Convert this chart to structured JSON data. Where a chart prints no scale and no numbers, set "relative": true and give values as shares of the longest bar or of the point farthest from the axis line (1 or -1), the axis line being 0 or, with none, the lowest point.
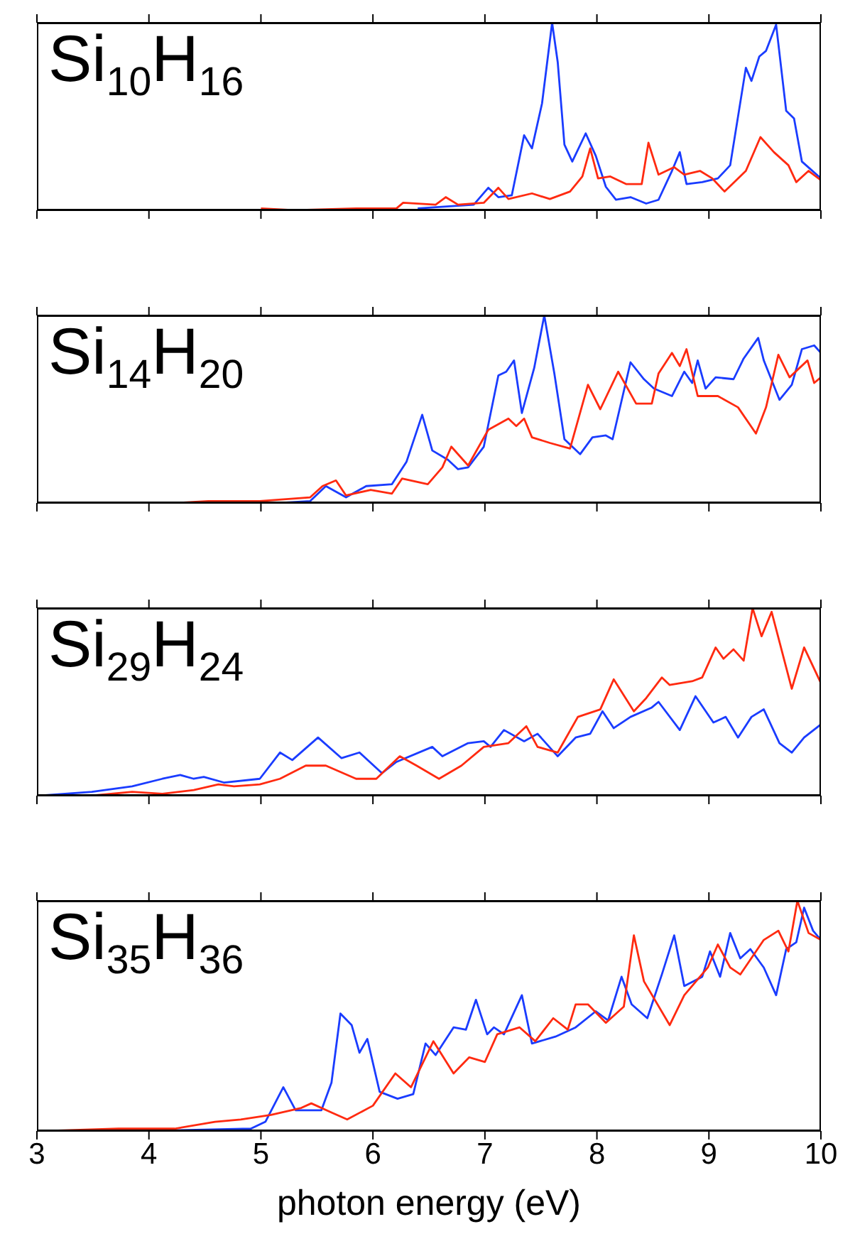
{
  "chart_data": [
    {
      "type": "line",
      "title": "Si$_{10}$H$_{16}$",
      "relative": true,
      "xlim": [
        3,
        10
      ],
      "xticks": [
        3,
        4,
        5,
        6,
        7,
        8,
        9,
        10
      ],
      "tick_labels": false,
      "series": [
        {
          "color": "#1a3cff",
          "x": [
            6.4,
            6.9,
            7.03,
            7.12,
            7.24,
            7.35,
            7.42,
            7.51,
            7.6,
            7.65,
            7.71,
            7.78,
            7.9,
            7.99,
            8.08,
            8.17,
            8.3,
            8.44,
            8.55,
            8.67,
            8.74,
            8.8,
            8.94,
            9.08,
            9.19,
            9.33,
            9.38,
            9.45,
            9.51,
            9.6,
            9.69,
            9.76,
            9.83,
            10
          ],
          "values": [
            0.01,
            0.03,
            0.12,
            0.07,
            0.08,
            0.4,
            0.33,
            0.57,
            1.0,
            0.79,
            0.35,
            0.26,
            0.41,
            0.29,
            0.125,
            0.056,
            0.07,
            0.036,
            0.056,
            0.21,
            0.31,
            0.14,
            0.15,
            0.17,
            0.24,
            0.76,
            0.69,
            0.82,
            0.85,
            0.99,
            0.53,
            0.49,
            0.26,
            0.17
          ]
        },
        {
          "color": "#ff2a10",
          "x": [
            5.0,
            5.3,
            5.85,
            6.21,
            6.27,
            6.56,
            6.65,
            6.76,
            6.99,
            7.12,
            7.21,
            7.42,
            7.58,
            7.76,
            7.87,
            7.94,
            8.01,
            8.12,
            8.26,
            8.4,
            8.46,
            8.55,
            8.69,
            8.78,
            8.92,
            9.03,
            9.14,
            9.33,
            9.46,
            9.58,
            9.71,
            9.78,
            9.89,
            10
          ],
          "values": [
            0.01,
            0,
            0.01,
            0.01,
            0.04,
            0.03,
            0.07,
            0.03,
            0.04,
            0.12,
            0.06,
            0.09,
            0.06,
            0.1,
            0.18,
            0.33,
            0.17,
            0.18,
            0.14,
            0.14,
            0.36,
            0.19,
            0.23,
            0.19,
            0.21,
            0.17,
            0.1,
            0.21,
            0.39,
            0.31,
            0.24,
            0.15,
            0.21,
            0.16
          ]
        }
      ]
    },
    {
      "type": "line",
      "title": "Si$_{14}$H$_{20}$",
      "relative": true,
      "xlim": [
        3,
        10
      ],
      "xticks": [
        3,
        4,
        5,
        6,
        7,
        8,
        9,
        10
      ],
      "tick_labels": false,
      "series": [
        {
          "color": "#1a3cff",
          "x": [
            5.17,
            5.44,
            5.58,
            5.76,
            5.94,
            6.17,
            6.3,
            6.44,
            6.53,
            6.67,
            6.76,
            6.85,
            6.99,
            7.12,
            7.19,
            7.26,
            7.33,
            7.44,
            7.53,
            7.62,
            7.71,
            7.85,
            7.96,
            8.08,
            8.14,
            8.3,
            8.42,
            8.51,
            8.67,
            8.78,
            8.85,
            8.9,
            8.97,
            9.06,
            9.22,
            9.31,
            9.44,
            9.49,
            9.63,
            9.74,
            9.83,
            9.94,
            10
          ],
          "values": [
            0,
            0.01,
            0.09,
            0.03,
            0.09,
            0.1,
            0.22,
            0.47,
            0.28,
            0.23,
            0.18,
            0.19,
            0.3,
            0.68,
            0.7,
            0.76,
            0.48,
            0.72,
            1.0,
            0.69,
            0.34,
            0.26,
            0.35,
            0.36,
            0.34,
            0.75,
            0.66,
            0.61,
            0.57,
            0.7,
            0.64,
            0.76,
            0.61,
            0.67,
            0.66,
            0.77,
            0.88,
            0.76,
            0.55,
            0.63,
            0.82,
            0.84,
            0.8
          ]
        },
        {
          "color": "#ff2a10",
          "x": [
            4.24,
            4.53,
            4.99,
            5.44,
            5.55,
            5.67,
            5.76,
            5.98,
            6.17,
            6.26,
            6.49,
            6.62,
            6.7,
            6.85,
            7.03,
            7.21,
            7.28,
            7.35,
            7.42,
            7.58,
            7.76,
            7.92,
            8.03,
            8.19,
            8.35,
            8.49,
            8.55,
            8.67,
            8.74,
            8.8,
            8.9,
            9.08,
            9.26,
            9.42,
            9.51,
            9.62,
            9.72,
            9.88,
            9.94,
            10
          ],
          "values": [
            0,
            0.01,
            0.01,
            0.03,
            0.09,
            0.12,
            0.04,
            0.07,
            0.05,
            0.13,
            0.1,
            0.19,
            0.3,
            0.2,
            0.39,
            0.45,
            0.41,
            0.45,
            0.35,
            0.32,
            0.29,
            0.63,
            0.5,
            0.7,
            0.53,
            0.53,
            0.69,
            0.8,
            0.73,
            0.82,
            0.57,
            0.57,
            0.51,
            0.37,
            0.51,
            0.79,
            0.67,
            0.76,
            0.64,
            0.67
          ]
        }
      ]
    },
    {
      "type": "line",
      "title": "Si$_{29}$H$_{24}$",
      "relative": true,
      "xlim": [
        3,
        10
      ],
      "xticks": [
        3,
        4,
        5,
        6,
        7,
        8,
        9,
        10
      ],
      "tick_labels": false,
      "series": [
        {
          "color": "#1a3cff",
          "x": [
            3.03,
            3.49,
            3.85,
            4.12,
            4.28,
            4.4,
            4.49,
            4.67,
            4.99,
            5.17,
            5.28,
            5.51,
            5.72,
            5.88,
            6.08,
            6.21,
            6.53,
            6.62,
            6.85,
            6.99,
            7.05,
            7.17,
            7.35,
            7.47,
            7.65,
            7.81,
            7.94,
            8.05,
            8.15,
            8.3,
            8.49,
            8.55,
            8.74,
            8.88,
            9.04,
            9.15,
            9.26,
            9.38,
            9.49,
            9.63,
            9.74,
            9.85,
            10
          ],
          "values": [
            0,
            0.02,
            0.05,
            0.09,
            0.11,
            0.09,
            0.1,
            0.07,
            0.09,
            0.23,
            0.19,
            0.31,
            0.2,
            0.23,
            0.12,
            0.18,
            0.26,
            0.21,
            0.28,
            0.29,
            0.26,
            0.35,
            0.29,
            0.33,
            0.21,
            0.31,
            0.33,
            0.45,
            0.36,
            0.42,
            0.47,
            0.5,
            0.35,
            0.53,
            0.39,
            0.42,
            0.31,
            0.42,
            0.46,
            0.28,
            0.23,
            0.31,
            0.38
          ]
        },
        {
          "color": "#ff2a10",
          "x": [
            3.49,
            3.85,
            4.12,
            4.4,
            4.62,
            4.76,
            4.99,
            5.17,
            5.4,
            5.58,
            5.85,
            6.03,
            6.24,
            6.39,
            6.59,
            6.79,
            6.99,
            7.21,
            7.37,
            7.47,
            7.65,
            7.83,
            8.03,
            8.15,
            8.33,
            8.44,
            8.58,
            8.65,
            8.85,
            8.94,
            9.06,
            9.13,
            9.22,
            9.31,
            9.39,
            9.47,
            9.56,
            9.74,
            9.85,
            10
          ],
          "values": [
            0,
            0.02,
            0.01,
            0.03,
            0.06,
            0.05,
            0.06,
            0.09,
            0.16,
            0.16,
            0.09,
            0.09,
            0.21,
            0.16,
            0.09,
            0.16,
            0.26,
            0.28,
            0.37,
            0.26,
            0.23,
            0.42,
            0.46,
            0.62,
            0.45,
            0.52,
            0.63,
            0.59,
            0.61,
            0.63,
            0.79,
            0.73,
            0.78,
            0.72,
            1.0,
            0.85,
            0.98,
            0.57,
            0.79,
            0.6
          ]
        }
      ]
    },
    {
      "type": "line",
      "title": "Si$_{35}$H$_{36}$",
      "relative": true,
      "xlabel": "photon energy (eV)",
      "xlim": [
        3,
        10
      ],
      "xticks": [
        3,
        4,
        5,
        6,
        7,
        8,
        9,
        10
      ],
      "tick_labels": "x",
      "series": [
        {
          "color": "#1a3cff",
          "x": [
            3.09,
            4,
            4.91,
            5.04,
            5.2,
            5.31,
            5.54,
            5.63,
            5.71,
            5.81,
            5.88,
            5.95,
            6.06,
            6.22,
            6.36,
            6.47,
            6.56,
            6.72,
            6.83,
            6.92,
            7.02,
            7.08,
            7.17,
            7.33,
            7.42,
            7.63,
            7.81,
            7.99,
            8.1,
            8.22,
            8.31,
            8.45,
            8.58,
            8.69,
            8.78,
            8.94,
            9.01,
            9.1,
            9.19,
            9.28,
            9.37,
            9.49,
            9.6,
            9.69,
            9.78,
            9.85,
            9.93,
            10
          ],
          "values": [
            0,
            0,
            0.01,
            0.04,
            0.19,
            0.09,
            0.09,
            0.21,
            0.51,
            0.46,
            0.34,
            0.4,
            0.17,
            0.14,
            0.16,
            0.38,
            0.33,
            0.45,
            0.44,
            0.57,
            0.42,
            0.45,
            0.42,
            0.59,
            0.38,
            0.41,
            0.45,
            0.52,
            0.48,
            0.67,
            0.55,
            0.49,
            0.68,
            0.85,
            0.63,
            0.67,
            0.78,
            0.67,
            0.86,
            0.75,
            0.79,
            0.71,
            0.59,
            0.79,
            0.82,
            0.97,
            0.87,
            0.83
          ]
        },
        {
          "color": "#ff2a10",
          "x": [
            3.09,
            3.73,
            4.23,
            4.59,
            4.82,
            5.09,
            5.36,
            5.45,
            5.63,
            5.77,
            6.0,
            6.2,
            6.34,
            6.54,
            6.72,
            6.86,
            7.0,
            7.11,
            7.31,
            7.45,
            7.61,
            7.74,
            7.81,
            7.92,
            8.08,
            8.24,
            8.33,
            8.42,
            8.65,
            8.78,
            8.99,
            9.08,
            9.19,
            9.28,
            9.49,
            9.62,
            9.71,
            9.79,
            9.89,
            10
          ],
          "values": [
            0,
            0.01,
            0.01,
            0.04,
            0.05,
            0.07,
            0.1,
            0.12,
            0.08,
            0.05,
            0.11,
            0.25,
            0.19,
            0.39,
            0.25,
            0.32,
            0.3,
            0.42,
            0.45,
            0.39,
            0.49,
            0.44,
            0.55,
            0.55,
            0.47,
            0.54,
            0.85,
            0.65,
            0.46,
            0.59,
            0.71,
            0.81,
            0.71,
            0.68,
            0.83,
            0.87,
            0.78,
            1.0,
            0.86,
            0.83
          ]
        }
      ]
    }
  ]
}
